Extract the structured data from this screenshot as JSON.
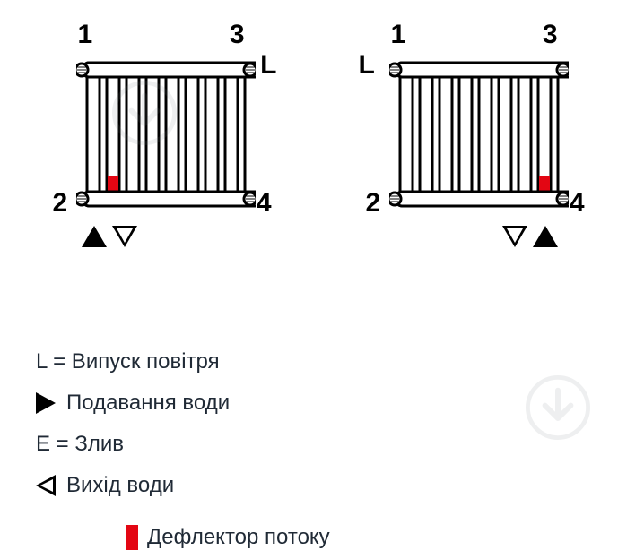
{
  "colors": {
    "stroke": "#000000",
    "deflector": "#e30613",
    "text": "#202a36",
    "bg": "#ffffff",
    "watermark": "#7a8087"
  },
  "radiator": {
    "tubes": 9,
    "tube_width": 14,
    "tube_gap": 8,
    "height": 180,
    "stroke_width": 3
  },
  "diagrams": [
    {
      "numbers": {
        "tl": "1",
        "tr": "3",
        "bl": "2",
        "br": "4"
      },
      "L_side": "right",
      "deflector_tube_index": 1,
      "arrows": {
        "position": "bottom-left",
        "order": [
          "filled",
          "outline"
        ]
      }
    },
    {
      "numbers": {
        "tl": "1",
        "tr": "3",
        "bl": "2",
        "br": "4"
      },
      "L_side": "left",
      "deflector_tube_index": 7,
      "arrows": {
        "position": "bottom-right",
        "order": [
          "outline",
          "filled"
        ]
      }
    }
  ],
  "legend": {
    "L_line": "L = Випуск повітря",
    "E_line": "E = Злив",
    "supply": "Подавання води",
    "outlet": "Вихід води",
    "deflector": "Дефлектор потоку"
  }
}
